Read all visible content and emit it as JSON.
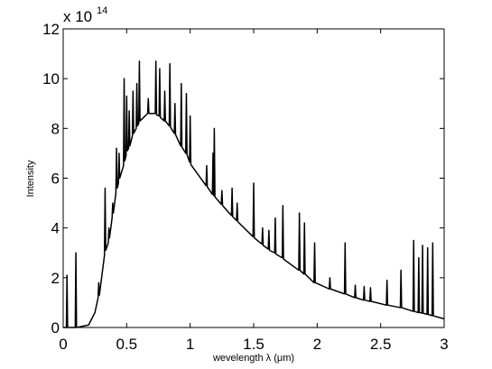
{
  "chart_data": {
    "type": "line",
    "xlabel": "wevelength λ (μm)",
    "ylabel": "Intensity",
    "multiplier": "x 10",
    "exponent": "14",
    "xlim": [
      0,
      3
    ],
    "ylim": [
      0,
      12
    ],
    "xticks": [
      0,
      0.5,
      1,
      1.5,
      2,
      2.5,
      3
    ],
    "yticks": [
      0,
      2,
      4,
      6,
      8,
      10,
      12
    ],
    "color": "#000000",
    "x": [
      0,
      0.025,
      0.03,
      0.035,
      0.095,
      0.1,
      0.105,
      0.2,
      0.25,
      0.275,
      0.28,
      0.285,
      0.325,
      0.33,
      0.335,
      0.355,
      0.36,
      0.365,
      0.385,
      0.39,
      0.395,
      0.415,
      0.42,
      0.425,
      0.435,
      0.44,
      0.445,
      0.475,
      0.48,
      0.485,
      0.495,
      0.5,
      0.505,
      0.515,
      0.52,
      0.525,
      0.545,
      0.55,
      0.555,
      0.575,
      0.58,
      0.585,
      0.595,
      0.6,
      0.605,
      0.665,
      0.67,
      0.675,
      0.725,
      0.73,
      0.735,
      0.755,
      0.76,
      0.765,
      0.795,
      0.8,
      0.805,
      0.835,
      0.84,
      0.845,
      0.875,
      0.88,
      0.885,
      0.925,
      0.93,
      0.935,
      0.965,
      0.97,
      0.975,
      0.995,
      1.0,
      1.005,
      1.125,
      1.13,
      1.135,
      1.175,
      1.18,
      1.185,
      1.19,
      1.195,
      1.245,
      1.25,
      1.255,
      1.325,
      1.33,
      1.335,
      1.365,
      1.37,
      1.375,
      1.495,
      1.5,
      1.505,
      1.565,
      1.57,
      1.575,
      1.615,
      1.62,
      1.625,
      1.665,
      1.67,
      1.675,
      1.725,
      1.73,
      1.735,
      1.855,
      1.86,
      1.865,
      1.895,
      1.9,
      1.905,
      1.975,
      1.98,
      1.985,
      2.095,
      2.1,
      2.105,
      2.215,
      2.22,
      2.225,
      2.295,
      2.3,
      2.305,
      2.365,
      2.37,
      2.375,
      2.415,
      2.42,
      2.425,
      2.545,
      2.55,
      2.555,
      2.655,
      2.66,
      2.665,
      2.755,
      2.76,
      2.765,
      2.795,
      2.8,
      2.805,
      2.825,
      2.83,
      2.835,
      2.865,
      2.87,
      2.875,
      2.905,
      2.91,
      2.915,
      3.0
    ],
    "values": [
      0,
      0,
      2.1,
      0,
      0,
      3.0,
      0,
      0.1,
      0.6,
      1.2,
      1.8,
      1.3,
      2.9,
      5.6,
      3.1,
      3.4,
      4.0,
      3.6,
      4.4,
      5.0,
      4.6,
      5.4,
      7.2,
      5.6,
      5.8,
      7.0,
      6.0,
      6.5,
      10.0,
      6.7,
      6.9,
      9.3,
      7.1,
      7.2,
      8.7,
      7.3,
      7.7,
      9.5,
      7.8,
      8.0,
      9.8,
      8.1,
      8.2,
      10.7,
      8.3,
      8.6,
      9.2,
      8.6,
      8.6,
      10.7,
      8.55,
      8.5,
      10.4,
      8.45,
      8.3,
      9.5,
      8.3,
      8.1,
      10.6,
      8.05,
      7.8,
      9.0,
      7.75,
      7.3,
      9.8,
      7.25,
      7.0,
      9.4,
      6.95,
      6.65,
      8.5,
      6.55,
      5.7,
      6.5,
      5.65,
      5.35,
      7.0,
      5.3,
      8.0,
      5.25,
      4.95,
      5.5,
      4.9,
      4.5,
      5.6,
      4.45,
      4.3,
      5.0,
      4.25,
      3.65,
      5.8,
      3.6,
      3.35,
      4.0,
      3.3,
      3.15,
      3.9,
      3.1,
      3.0,
      4.4,
      2.95,
      2.8,
      4.9,
      2.75,
      2.3,
      4.6,
      2.3,
      2.15,
      4.2,
      2.15,
      1.8,
      3.4,
      1.8,
      1.55,
      2.0,
      1.55,
      1.35,
      3.4,
      1.35,
      1.2,
      1.7,
      1.2,
      1.1,
      1.65,
      1.1,
      1.05,
      1.6,
      1.05,
      0.9,
      1.9,
      0.9,
      0.8,
      2.3,
      0.8,
      0.65,
      3.5,
      0.65,
      0.6,
      2.8,
      0.6,
      0.58,
      3.3,
      0.57,
      0.53,
      3.2,
      0.52,
      0.48,
      3.4,
      0.47,
      0.35
    ]
  }
}
